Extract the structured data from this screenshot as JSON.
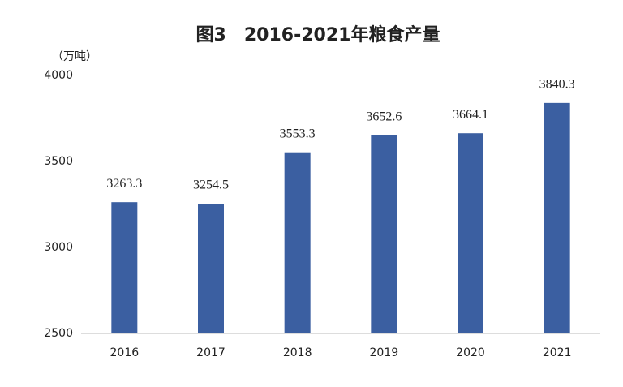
{
  "chart_data": {
    "type": "bar",
    "title": "图3　2016-2021年粮食产量",
    "y_label": "（万吨）",
    "categories": [
      "2016",
      "2017",
      "2018",
      "2019",
      "2020",
      "2021"
    ],
    "values": [
      3263.3,
      3254.5,
      3553.3,
      3652.6,
      3664.1,
      3840.3
    ],
    "color": "#3b5fa1",
    "ylim": [
      2500,
      4000
    ],
    "yticks": [
      2500,
      3000,
      3500,
      4000
    ],
    "grid": false
  }
}
